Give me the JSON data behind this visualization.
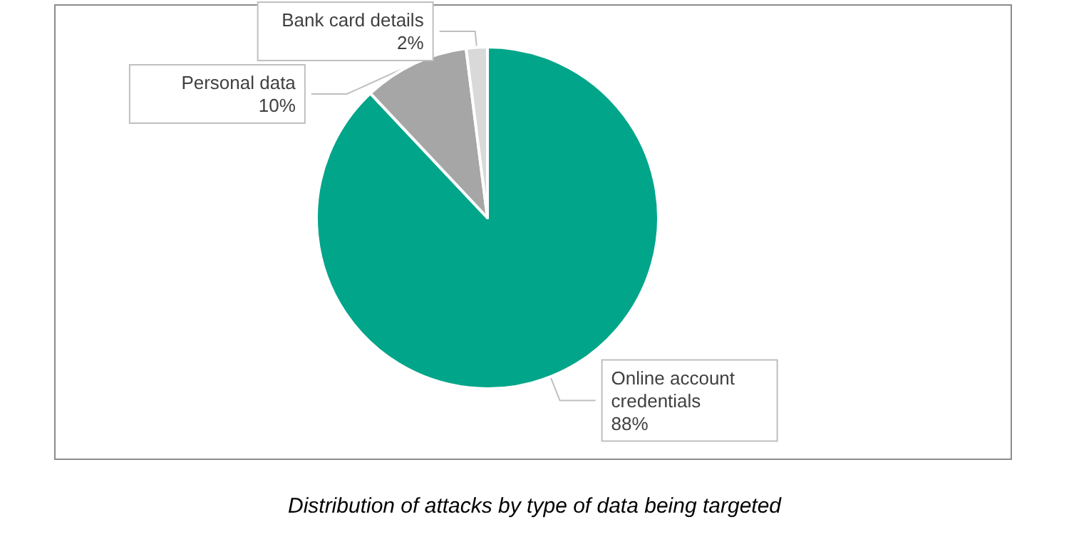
{
  "chart_data": {
    "type": "pie",
    "title": "Distribution of attacks by type of data being targeted",
    "categories": [
      "Online account credentials",
      "Personal data",
      "Bank card details"
    ],
    "values": [
      88,
      10,
      2
    ],
    "value_labels": [
      "88%",
      "10%",
      "2%"
    ],
    "colors": [
      "#00a58a",
      "#a6a6a6",
      "#d9d9d9"
    ],
    "legend": false
  }
}
